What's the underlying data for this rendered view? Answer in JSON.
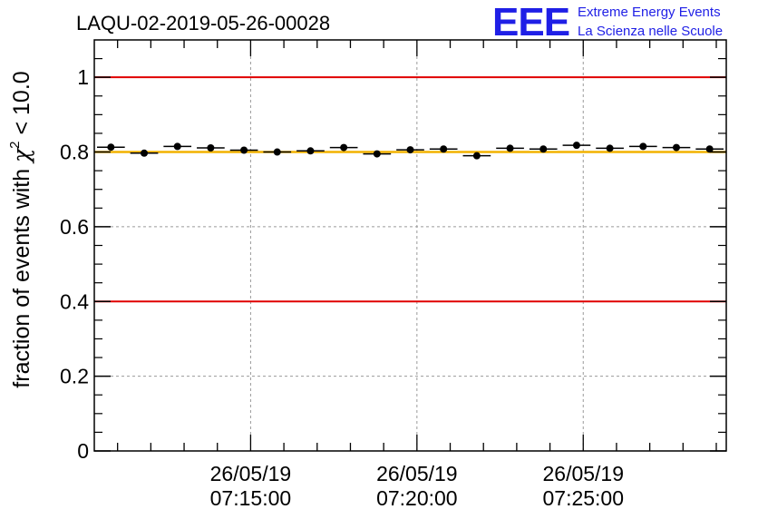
{
  "header": {
    "run_title": "LAQU-02-2019-05-26-00028",
    "logo_letters": "EEE",
    "logo_line1": "Extreme Energy Events",
    "logo_line2": "La Scienza nelle Scuole"
  },
  "colors": {
    "reference_line": "#e00000",
    "mean_line": "#f2b200",
    "grid": "#9a9a9a",
    "logo": "#1f1fe6"
  },
  "chart_data": {
    "type": "scatter",
    "title": "LAQU-02-2019-05-26-00028",
    "ylabel_prefix": "fraction of events with ",
    "ylabel_symbol": "χ",
    "ylabel_sup": "2",
    "ylabel_suffix": " < 10.0",
    "xlabel": "",
    "ylim": [
      0,
      1.1
    ],
    "xlim": [
      "2019-05-26 07:10:18",
      "2019-05-26 07:29:18"
    ],
    "x_ticks": [
      {
        "x": "2019-05-26 07:15:00",
        "date": "26/05/19",
        "time": "07:15:00"
      },
      {
        "x": "2019-05-26 07:20:00",
        "date": "26/05/19",
        "time": "07:20:00"
      },
      {
        "x": "2019-05-26 07:25:00",
        "date": "26/05/19",
        "time": "07:25:00"
      }
    ],
    "y_ticks": [
      "0",
      "0.2",
      "0.4",
      "0.6",
      "0.8",
      "1"
    ],
    "grid": true,
    "reference_lines": [
      1.0,
      0.4
    ],
    "mean_line": 0.8,
    "bin_width_seconds": 60,
    "points": [
      {
        "x": "2019-05-26 07:10:48",
        "y": 0.813
      },
      {
        "x": "2019-05-26 07:11:48",
        "y": 0.797
      },
      {
        "x": "2019-05-26 07:12:48",
        "y": 0.815
      },
      {
        "x": "2019-05-26 07:13:48",
        "y": 0.811
      },
      {
        "x": "2019-05-26 07:14:48",
        "y": 0.805
      },
      {
        "x": "2019-05-26 07:15:48",
        "y": 0.8
      },
      {
        "x": "2019-05-26 07:16:48",
        "y": 0.803
      },
      {
        "x": "2019-05-26 07:17:48",
        "y": 0.812
      },
      {
        "x": "2019-05-26 07:18:48",
        "y": 0.795
      },
      {
        "x": "2019-05-26 07:19:48",
        "y": 0.806
      },
      {
        "x": "2019-05-26 07:20:48",
        "y": 0.808
      },
      {
        "x": "2019-05-26 07:21:48",
        "y": 0.79
      },
      {
        "x": "2019-05-26 07:22:48",
        "y": 0.81
      },
      {
        "x": "2019-05-26 07:23:48",
        "y": 0.808
      },
      {
        "x": "2019-05-26 07:24:48",
        "y": 0.818
      },
      {
        "x": "2019-05-26 07:25:48",
        "y": 0.81
      },
      {
        "x": "2019-05-26 07:26:48",
        "y": 0.815
      },
      {
        "x": "2019-05-26 07:27:48",
        "y": 0.812
      },
      {
        "x": "2019-05-26 07:28:48",
        "y": 0.808
      }
    ]
  }
}
